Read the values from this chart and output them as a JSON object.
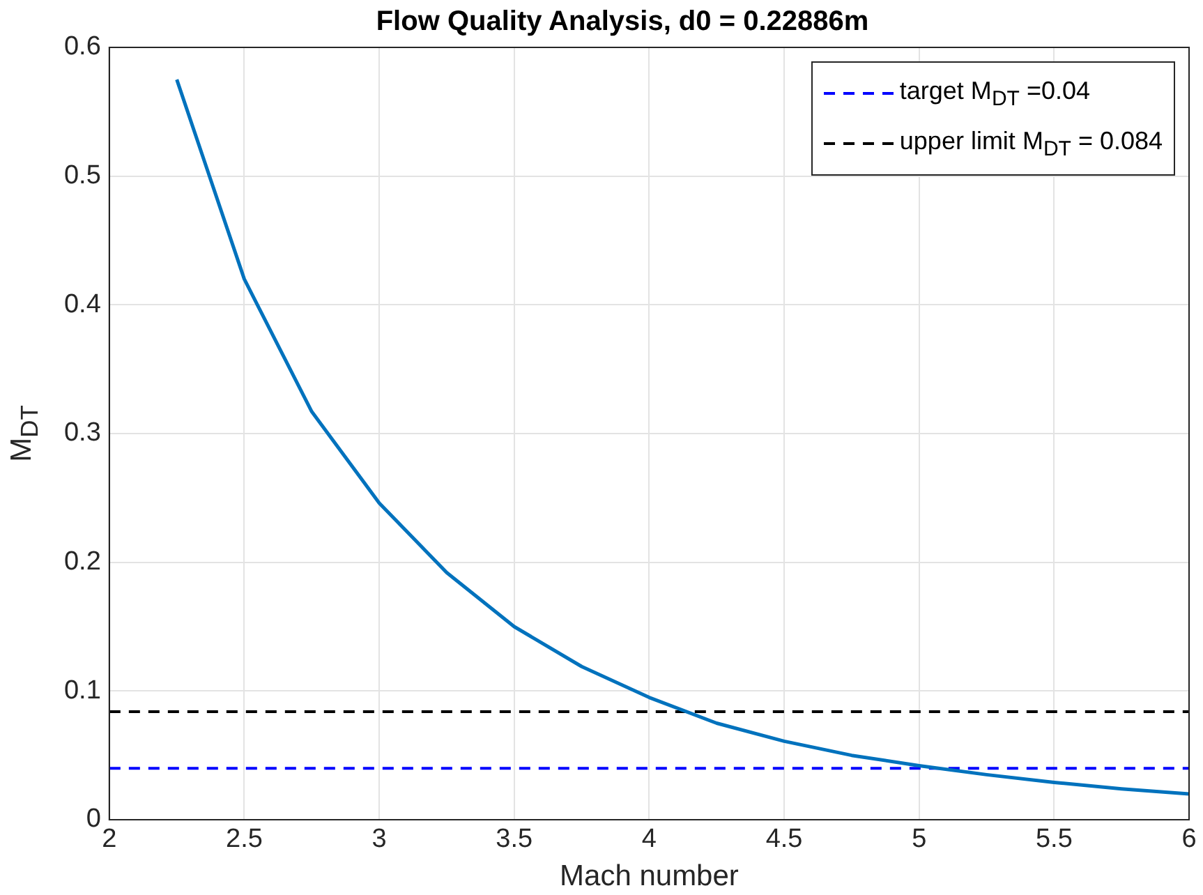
{
  "chart_data": {
    "type": "line",
    "title": "Flow Quality Analysis, d0 = 0.22886m",
    "xlabel": "Mach number",
    "ylabel": "M$_{DT}$",
    "x": [
      2.25,
      2.5,
      2.75,
      3,
      3.25,
      3.5,
      3.75,
      4,
      4.25,
      4.5,
      4.75,
      5,
      5.25,
      5.5,
      5.75,
      6
    ],
    "series": [
      {
        "color": "#0072bd",
        "values": [
          0.575,
          0.42,
          0.317,
          0.246,
          0.192,
          0.15,
          0.119,
          0.095,
          0.075,
          0.061,
          0.05,
          0.042,
          0.035,
          0.029,
          0.024,
          0.02
        ]
      }
    ],
    "xlim": [
      2,
      6
    ],
    "ylim": [
      0,
      0.6
    ],
    "xticks": [
      2,
      2.5,
      3,
      3.5,
      4,
      4.5,
      5,
      5.5,
      6
    ],
    "yticks": [
      0,
      0.1,
      0.2,
      0.3,
      0.4,
      0.5,
      0.6
    ],
    "ref_lines": [
      {
        "axis": "y",
        "value": 0.04,
        "label": "target M$_{DT}$ =0.04",
        "color": "#0000ff",
        "line_style": "dashed"
      },
      {
        "axis": "y",
        "value": 0.084,
        "label": "upper limit M$_{DT}$ = 0.084",
        "color": "#000000",
        "line_style": "dashed"
      }
    ],
    "grid": true,
    "legend": "top right",
    "marker": "none",
    "line_style": "solid"
  }
}
